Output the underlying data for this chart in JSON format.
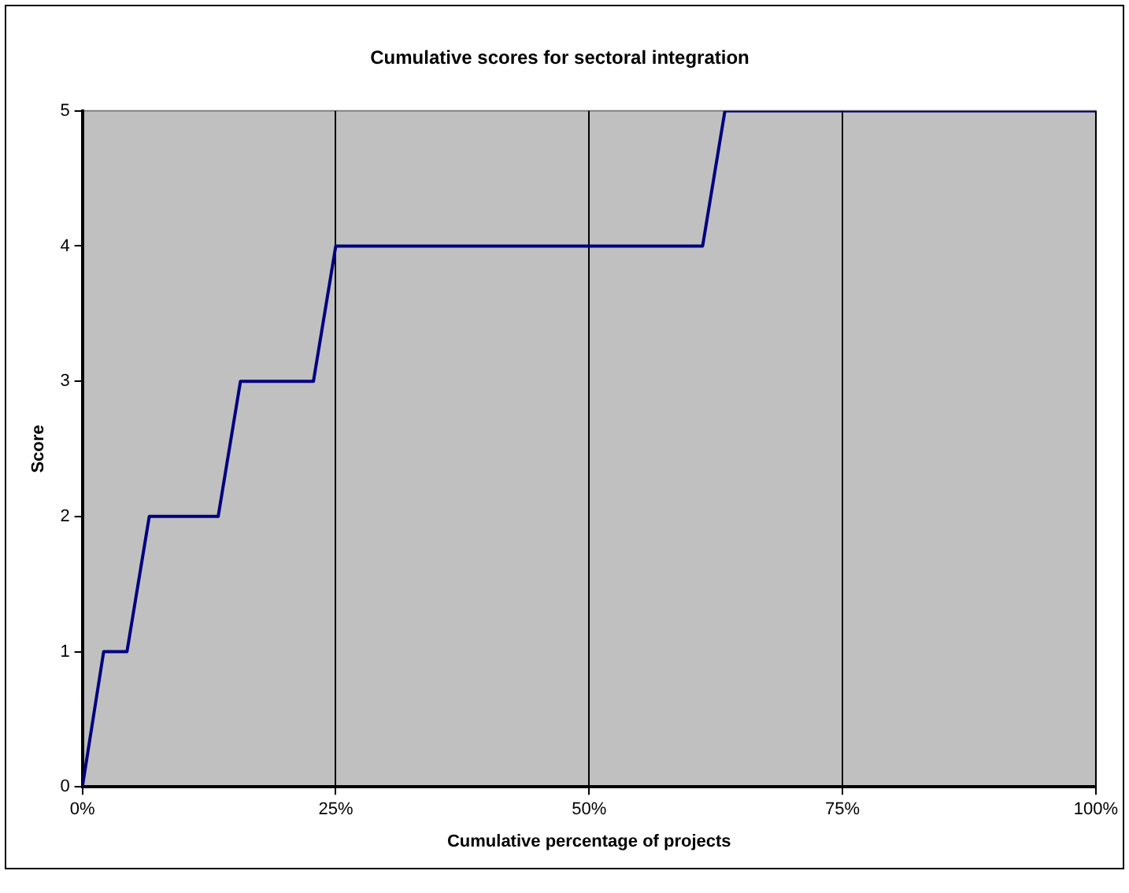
{
  "chart_data": {
    "type": "line",
    "title": "Cumulative scores for sectoral integration",
    "xlabel": "Cumulative percentage of projects",
    "ylabel": "Score",
    "x": [
      0,
      2.1,
      4.4,
      6.6,
      13.4,
      15.6,
      22.8,
      25,
      61.2,
      63.4,
      100
    ],
    "series": [
      {
        "color": "#000080",
        "values": [
          0,
          1,
          1,
          2,
          2,
          3,
          3,
          4,
          4,
          5,
          5
        ]
      }
    ],
    "xlim": [
      0,
      100
    ],
    "xticks": [
      {
        "value": 0,
        "label": "0%"
      },
      {
        "value": 25,
        "label": "25%"
      },
      {
        "value": 50,
        "label": "50%"
      },
      {
        "value": 75,
        "label": "75%"
      },
      {
        "value": 100,
        "label": "100%"
      }
    ],
    "ylim": [
      0,
      5
    ],
    "yticks": [
      0,
      1,
      2,
      3,
      4,
      5
    ],
    "grid": "x",
    "legend": false,
    "marker": "none",
    "line_style": "solid"
  }
}
